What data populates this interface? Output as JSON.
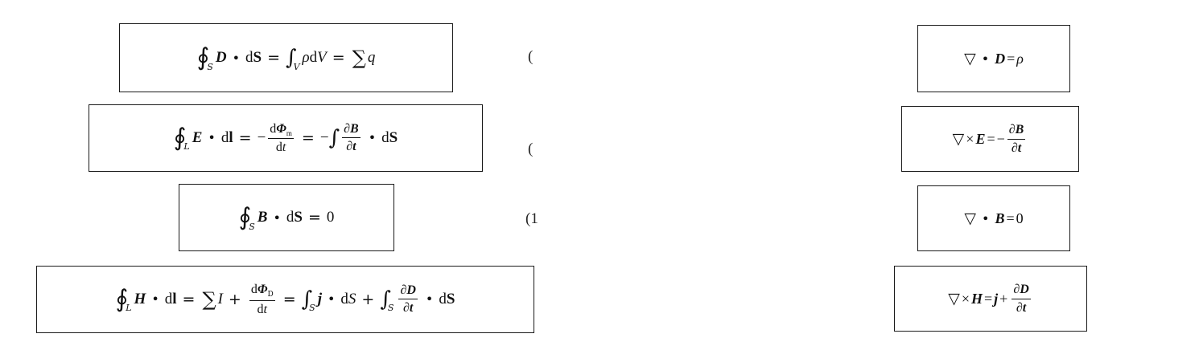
{
  "left_equations": [
    {
      "id": "gauss_d",
      "label": "("
    },
    {
      "id": "faraday",
      "label": "("
    },
    {
      "id": "gauss_b",
      "label": "(1"
    },
    {
      "id": "ampere",
      "label": ""
    }
  ],
  "right_equations": [
    {
      "id": "div_d"
    },
    {
      "id": "curl_e"
    },
    {
      "id": "div_b"
    },
    {
      "id": "curl_h"
    }
  ]
}
